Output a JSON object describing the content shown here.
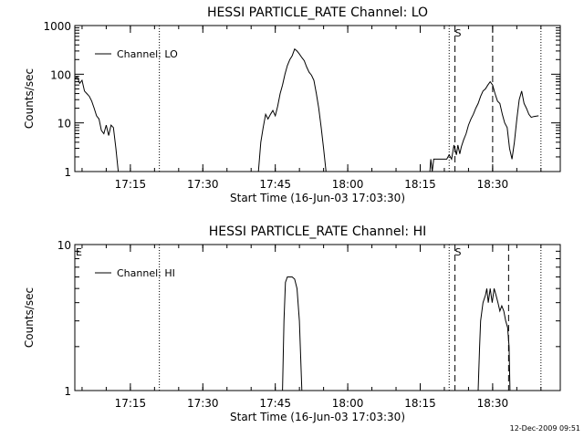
{
  "footer_date": "12-Dec-2009 09:51",
  "chart_data": [
    {
      "type": "line",
      "title": "HESSI PARTICLE_RATE Channel: LO",
      "xlabel": "Start Time (16-Jun-03 17:03:30)",
      "ylabel": "Counts/sec",
      "yscale": "log",
      "xlim": [
        0,
        100.5
      ],
      "ylim": [
        1,
        1000
      ],
      "x_ticks": [
        {
          "at": 11.5,
          "label": "17:15"
        },
        {
          "at": 26.5,
          "label": "17:30"
        },
        {
          "at": 41.5,
          "label": "17:45"
        },
        {
          "at": 56.5,
          "label": "18:00"
        },
        {
          "at": 71.5,
          "label": "18:15"
        },
        {
          "at": 86.5,
          "label": "18:30"
        }
      ],
      "y_ticks": [
        {
          "at": 1,
          "label": "1"
        },
        {
          "at": 10,
          "label": "10"
        },
        {
          "at": 100,
          "label": "100"
        },
        {
          "at": 1000,
          "label": "1000"
        }
      ],
      "grid": false,
      "legend_position": "top-left",
      "series": [
        {
          "name": "Channel: LO",
          "color": "#000000",
          "segments": [
            [
              [
                0,
                80
              ],
              [
                0.5,
                90
              ],
              [
                1,
                65
              ],
              [
                1.5,
                75
              ],
              [
                2,
                45
              ],
              [
                2.5,
                40
              ],
              [
                3,
                35
              ],
              [
                3.5,
                28
              ],
              [
                4,
                20
              ],
              [
                4.5,
                14
              ],
              [
                5,
                12
              ],
              [
                5.5,
                7
              ],
              [
                6,
                6
              ],
              [
                6.5,
                9
              ],
              [
                7,
                5.5
              ],
              [
                7.5,
                9
              ],
              [
                8,
                8
              ],
              [
                8.5,
                3
              ],
              [
                9,
                1
              ]
            ],
            [
              [
                38,
                1
              ],
              [
                38.5,
                4
              ],
              [
                39,
                8
              ],
              [
                39.5,
                15
              ],
              [
                40,
                12
              ],
              [
                40.5,
                15
              ],
              [
                41,
                18
              ],
              [
                41.5,
                14
              ],
              [
                42,
                22
              ],
              [
                42.5,
                40
              ],
              [
                43,
                60
              ],
              [
                43.5,
                100
              ],
              [
                44,
                150
              ],
              [
                44.5,
                200
              ],
              [
                45,
                240
              ],
              [
                45.5,
                330
              ],
              [
                46,
                300
              ],
              [
                46.5,
                260
              ],
              [
                47,
                220
              ],
              [
                47.5,
                190
              ],
              [
                48,
                140
              ],
              [
                48.5,
                110
              ],
              [
                49,
                95
              ],
              [
                49.5,
                75
              ],
              [
                50,
                40
              ],
              [
                50.5,
                20
              ],
              [
                51,
                8
              ],
              [
                51.5,
                3
              ],
              [
                52,
                1
              ]
            ],
            [
              [
                73.5,
                1
              ],
              [
                73.7,
                1.8
              ],
              [
                74,
                1
              ],
              [
                74.3,
                1.8
              ],
              [
                75,
                1.8
              ],
              [
                76,
                1.8
              ],
              [
                77,
                1.8
              ],
              [
                77.5,
                2.2
              ],
              [
                78,
                1.8
              ],
              [
                78.5,
                3.5
              ],
              [
                79,
                2.2
              ],
              [
                79.3,
                3.5
              ],
              [
                79.7,
                2.3
              ],
              [
                80,
                3.2
              ],
              [
                80.5,
                4.5
              ],
              [
                81,
                6
              ],
              [
                81.5,
                9
              ],
              [
                82,
                12
              ],
              [
                82.5,
                15
              ],
              [
                83,
                20
              ],
              [
                83.5,
                25
              ],
              [
                84,
                35
              ],
              [
                84.5,
                45
              ],
              [
                85,
                50
              ],
              [
                85.5,
                60
              ],
              [
                86,
                70
              ],
              [
                86.5,
                60
              ],
              [
                87,
                40
              ],
              [
                87.5,
                28
              ],
              [
                88,
                25
              ],
              [
                88.5,
                15
              ],
              [
                89,
                10
              ],
              [
                89.5,
                8
              ],
              [
                90,
                3
              ],
              [
                90.5,
                1.8
              ],
              [
                91,
                4
              ],
              [
                91.5,
                12
              ],
              [
                92,
                30
              ],
              [
                92.5,
                45
              ],
              [
                93,
                25
              ],
              [
                93.5,
                20
              ],
              [
                94,
                15
              ],
              [
                94.5,
                13
              ],
              [
                95,
                13.5
              ],
              [
                96,
                14
              ]
            ]
          ]
        }
      ],
      "vlines": [
        {
          "x": 17.5,
          "style": "dotted"
        },
        {
          "x": 77.5,
          "style": "dotted"
        },
        {
          "x": 78.7,
          "style": "dashed"
        },
        {
          "x": 86.5,
          "style": "dashed"
        },
        {
          "x": 96.5,
          "style": "dotted"
        }
      ],
      "markers": [
        {
          "x": 78.5,
          "text": "S"
        }
      ]
    },
    {
      "type": "line",
      "title": "HESSI PARTICLE_RATE Channel: HI",
      "xlabel": "Start Time (16-Jun-03 17:03:30)",
      "ylabel": "Counts/sec",
      "yscale": "log",
      "xlim": [
        0,
        100.5
      ],
      "ylim": [
        1,
        10
      ],
      "x_ticks": [
        {
          "at": 11.5,
          "label": "17:15"
        },
        {
          "at": 26.5,
          "label": "17:30"
        },
        {
          "at": 41.5,
          "label": "17:45"
        },
        {
          "at": 56.5,
          "label": "18:00"
        },
        {
          "at": 71.5,
          "label": "18:15"
        },
        {
          "at": 86.5,
          "label": "18:30"
        }
      ],
      "y_ticks": [
        {
          "at": 1,
          "label": "1"
        },
        {
          "at": 10,
          "label": "10"
        }
      ],
      "grid": false,
      "legend_position": "top-left",
      "series": [
        {
          "name": "Channel: HI",
          "color": "#000000",
          "segments": [
            [
              [
                43,
                1
              ],
              [
                43.3,
                3
              ],
              [
                43.6,
                5.5
              ],
              [
                44,
                6
              ],
              [
                44.5,
                6
              ],
              [
                45,
                6
              ],
              [
                45.5,
                5.8
              ],
              [
                46,
                5
              ],
              [
                46.5,
                3
              ],
              [
                47,
                1
              ]
            ],
            [
              [
                83.5,
                1
              ],
              [
                83.8,
                2
              ],
              [
                84,
                3
              ],
              [
                84.5,
                4
              ],
              [
                85,
                4.5
              ],
              [
                85.3,
                5
              ],
              [
                85.6,
                4
              ],
              [
                86,
                5
              ],
              [
                86.4,
                4
              ],
              [
                86.8,
                5
              ],
              [
                87.2,
                4.5
              ],
              [
                87.6,
                4
              ],
              [
                88,
                3.5
              ],
              [
                88.4,
                3.8
              ],
              [
                88.8,
                3.5
              ],
              [
                89.2,
                3
              ],
              [
                89.6,
                2.7
              ],
              [
                89.9,
                2
              ],
              [
                90.1,
                1
              ]
            ]
          ]
        }
      ],
      "vlines": [
        {
          "x": 17.5,
          "style": "dotted"
        },
        {
          "x": 77.5,
          "style": "dotted"
        },
        {
          "x": 78.7,
          "style": "dashed"
        },
        {
          "x": 89.8,
          "style": "dashed"
        },
        {
          "x": 96.5,
          "style": "dotted"
        }
      ],
      "markers": [
        {
          "x": 0,
          "text": "E"
        },
        {
          "x": 78.5,
          "text": "S"
        }
      ]
    }
  ]
}
